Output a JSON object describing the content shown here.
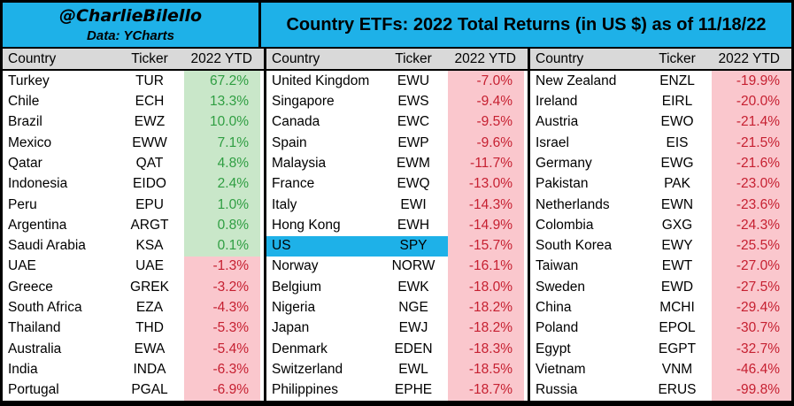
{
  "header": {
    "handle": "@CharlieBilello",
    "data_source": "Data: YCharts",
    "title": "Country ETFs: 2022 Total Returns (in US $) as of 11/18/22"
  },
  "colors": {
    "accent_cyan": "#1eb1e8",
    "header_row_bg": "#d9d9d9",
    "positive_bg": "#c9e7c9",
    "positive_text": "#2f9e42",
    "negative_bg": "#fac7cd",
    "negative_text": "#c62031"
  },
  "table": {
    "columns": [
      "Country",
      "Ticker",
      "2022 YTD"
    ],
    "groups": [
      {
        "rows": [
          {
            "country": "Turkey",
            "ticker": "TUR",
            "ytd": "67.2%",
            "positive": true
          },
          {
            "country": "Chile",
            "ticker": "ECH",
            "ytd": "13.3%",
            "positive": true
          },
          {
            "country": "Brazil",
            "ticker": "EWZ",
            "ytd": "10.0%",
            "positive": true
          },
          {
            "country": "Mexico",
            "ticker": "EWW",
            "ytd": "7.1%",
            "positive": true
          },
          {
            "country": "Qatar",
            "ticker": "QAT",
            "ytd": "4.8%",
            "positive": true
          },
          {
            "country": "Indonesia",
            "ticker": "EIDO",
            "ytd": "2.4%",
            "positive": true
          },
          {
            "country": "Peru",
            "ticker": "EPU",
            "ytd": "1.0%",
            "positive": true
          },
          {
            "country": "Argentina",
            "ticker": "ARGT",
            "ytd": "0.8%",
            "positive": true
          },
          {
            "country": "Saudi Arabia",
            "ticker": "KSA",
            "ytd": "0.1%",
            "positive": true
          },
          {
            "country": "UAE",
            "ticker": "UAE",
            "ytd": "-1.3%",
            "positive": false
          },
          {
            "country": "Greece",
            "ticker": "GREK",
            "ytd": "-3.2%",
            "positive": false
          },
          {
            "country": "South Africa",
            "ticker": "EZA",
            "ytd": "-4.3%",
            "positive": false
          },
          {
            "country": "Thailand",
            "ticker": "THD",
            "ytd": "-5.3%",
            "positive": false
          },
          {
            "country": "Australia",
            "ticker": "EWA",
            "ytd": "-5.4%",
            "positive": false
          },
          {
            "country": "India",
            "ticker": "INDA",
            "ytd": "-6.3%",
            "positive": false
          },
          {
            "country": "Portugal",
            "ticker": "PGAL",
            "ytd": "-6.9%",
            "positive": false
          }
        ]
      },
      {
        "rows": [
          {
            "country": "United Kingdom",
            "ticker": "EWU",
            "ytd": "-7.0%",
            "positive": false
          },
          {
            "country": "Singapore",
            "ticker": "EWS",
            "ytd": "-9.4%",
            "positive": false
          },
          {
            "country": "Canada",
            "ticker": "EWC",
            "ytd": "-9.5%",
            "positive": false
          },
          {
            "country": "Spain",
            "ticker": "EWP",
            "ytd": "-9.6%",
            "positive": false
          },
          {
            "country": "Malaysia",
            "ticker": "EWM",
            "ytd": "-11.7%",
            "positive": false
          },
          {
            "country": "France",
            "ticker": "EWQ",
            "ytd": "-13.0%",
            "positive": false
          },
          {
            "country": "Italy",
            "ticker": "EWI",
            "ytd": "-14.3%",
            "positive": false
          },
          {
            "country": "Hong Kong",
            "ticker": "EWH",
            "ytd": "-14.9%",
            "positive": false
          },
          {
            "country": "US",
            "ticker": "SPY",
            "ytd": "-15.7%",
            "positive": false,
            "highlight": true
          },
          {
            "country": "Norway",
            "ticker": "NORW",
            "ytd": "-16.1%",
            "positive": false
          },
          {
            "country": "Belgium",
            "ticker": "EWK",
            "ytd": "-18.0%",
            "positive": false
          },
          {
            "country": "Nigeria",
            "ticker": "NGE",
            "ytd": "-18.2%",
            "positive": false
          },
          {
            "country": "Japan",
            "ticker": "EWJ",
            "ytd": "-18.2%",
            "positive": false
          },
          {
            "country": "Denmark",
            "ticker": "EDEN",
            "ytd": "-18.3%",
            "positive": false
          },
          {
            "country": "Switzerland",
            "ticker": "EWL",
            "ytd": "-18.5%",
            "positive": false
          },
          {
            "country": "Philippines",
            "ticker": "EPHE",
            "ytd": "-18.7%",
            "positive": false
          }
        ]
      },
      {
        "rows": [
          {
            "country": "New Zealand",
            "ticker": "ENZL",
            "ytd": "-19.9%",
            "positive": false
          },
          {
            "country": "Ireland",
            "ticker": "EIRL",
            "ytd": "-20.0%",
            "positive": false
          },
          {
            "country": "Austria",
            "ticker": "EWO",
            "ytd": "-21.4%",
            "positive": false
          },
          {
            "country": "Israel",
            "ticker": "EIS",
            "ytd": "-21.5%",
            "positive": false
          },
          {
            "country": "Germany",
            "ticker": "EWG",
            "ytd": "-21.6%",
            "positive": false
          },
          {
            "country": "Pakistan",
            "ticker": "PAK",
            "ytd": "-23.0%",
            "positive": false
          },
          {
            "country": "Netherlands",
            "ticker": "EWN",
            "ytd": "-23.6%",
            "positive": false
          },
          {
            "country": "Colombia",
            "ticker": "GXG",
            "ytd": "-24.3%",
            "positive": false
          },
          {
            "country": "South Korea",
            "ticker": "EWY",
            "ytd": "-25.5%",
            "positive": false
          },
          {
            "country": "Taiwan",
            "ticker": "EWT",
            "ytd": "-27.0%",
            "positive": false
          },
          {
            "country": "Sweden",
            "ticker": "EWD",
            "ytd": "-27.5%",
            "positive": false
          },
          {
            "country": "China",
            "ticker": "MCHI",
            "ytd": "-29.4%",
            "positive": false
          },
          {
            "country": "Poland",
            "ticker": "EPOL",
            "ytd": "-30.7%",
            "positive": false
          },
          {
            "country": "Egypt",
            "ticker": "EGPT",
            "ytd": "-32.7%",
            "positive": false
          },
          {
            "country": "Vietnam",
            "ticker": "VNM",
            "ytd": "-46.4%",
            "positive": false
          },
          {
            "country": "Russia",
            "ticker": "ERUS",
            "ytd": "-99.8%",
            "positive": false
          }
        ]
      }
    ]
  },
  "chart_data": {
    "type": "table",
    "title": "Country ETFs: 2022 Total Returns (in US $) as of 11/18/22",
    "source_note": "Data: YCharts",
    "author": "@CharlieBilello",
    "columns": [
      "Country",
      "Ticker",
      "2022 YTD (%)"
    ],
    "highlighted_row": "US",
    "rows": [
      [
        "Turkey",
        "TUR",
        67.2
      ],
      [
        "Chile",
        "ECH",
        13.3
      ],
      [
        "Brazil",
        "EWZ",
        10.0
      ],
      [
        "Mexico",
        "EWW",
        7.1
      ],
      [
        "Qatar",
        "QAT",
        4.8
      ],
      [
        "Indonesia",
        "EIDO",
        2.4
      ],
      [
        "Peru",
        "EPU",
        1.0
      ],
      [
        "Argentina",
        "ARGT",
        0.8
      ],
      [
        "Saudi Arabia",
        "KSA",
        0.1
      ],
      [
        "UAE",
        "UAE",
        -1.3
      ],
      [
        "Greece",
        "GREK",
        -3.2
      ],
      [
        "South Africa",
        "EZA",
        -4.3
      ],
      [
        "Thailand",
        "THD",
        -5.3
      ],
      [
        "Australia",
        "EWA",
        -5.4
      ],
      [
        "India",
        "INDA",
        -6.3
      ],
      [
        "Portugal",
        "PGAL",
        -6.9
      ],
      [
        "United Kingdom",
        "EWU",
        -7.0
      ],
      [
        "Singapore",
        "EWS",
        -9.4
      ],
      [
        "Canada",
        "EWC",
        -9.5
      ],
      [
        "Spain",
        "EWP",
        -9.6
      ],
      [
        "Malaysia",
        "EWM",
        -11.7
      ],
      [
        "France",
        "EWQ",
        -13.0
      ],
      [
        "Italy",
        "EWI",
        -14.3
      ],
      [
        "Hong Kong",
        "EWH",
        -14.9
      ],
      [
        "US",
        "SPY",
        -15.7
      ],
      [
        "Norway",
        "NORW",
        -16.1
      ],
      [
        "Belgium",
        "EWK",
        -18.0
      ],
      [
        "Nigeria",
        "NGE",
        -18.2
      ],
      [
        "Japan",
        "EWJ",
        -18.2
      ],
      [
        "Denmark",
        "EDEN",
        -18.3
      ],
      [
        "Switzerland",
        "EWL",
        -18.5
      ],
      [
        "Philippines",
        "EPHE",
        -18.7
      ],
      [
        "New Zealand",
        "ENZL",
        -19.9
      ],
      [
        "Ireland",
        "EIRL",
        -20.0
      ],
      [
        "Austria",
        "EWO",
        -21.4
      ],
      [
        "Israel",
        "EIS",
        -21.5
      ],
      [
        "Germany",
        "EWG",
        -21.6
      ],
      [
        "Pakistan",
        "PAK",
        -23.0
      ],
      [
        "Netherlands",
        "EWN",
        -23.6
      ],
      [
        "Colombia",
        "GXG",
        -24.3
      ],
      [
        "South Korea",
        "EWY",
        -25.5
      ],
      [
        "Taiwan",
        "EWT",
        -27.0
      ],
      [
        "Sweden",
        "EWD",
        -27.5
      ],
      [
        "China",
        "MCHI",
        -29.4
      ],
      [
        "Poland",
        "EPOL",
        -30.7
      ],
      [
        "Egypt",
        "EGPT",
        -32.7
      ],
      [
        "Vietnam",
        "VNM",
        -46.4
      ],
      [
        "Russia",
        "ERUS",
        -99.8
      ]
    ]
  }
}
